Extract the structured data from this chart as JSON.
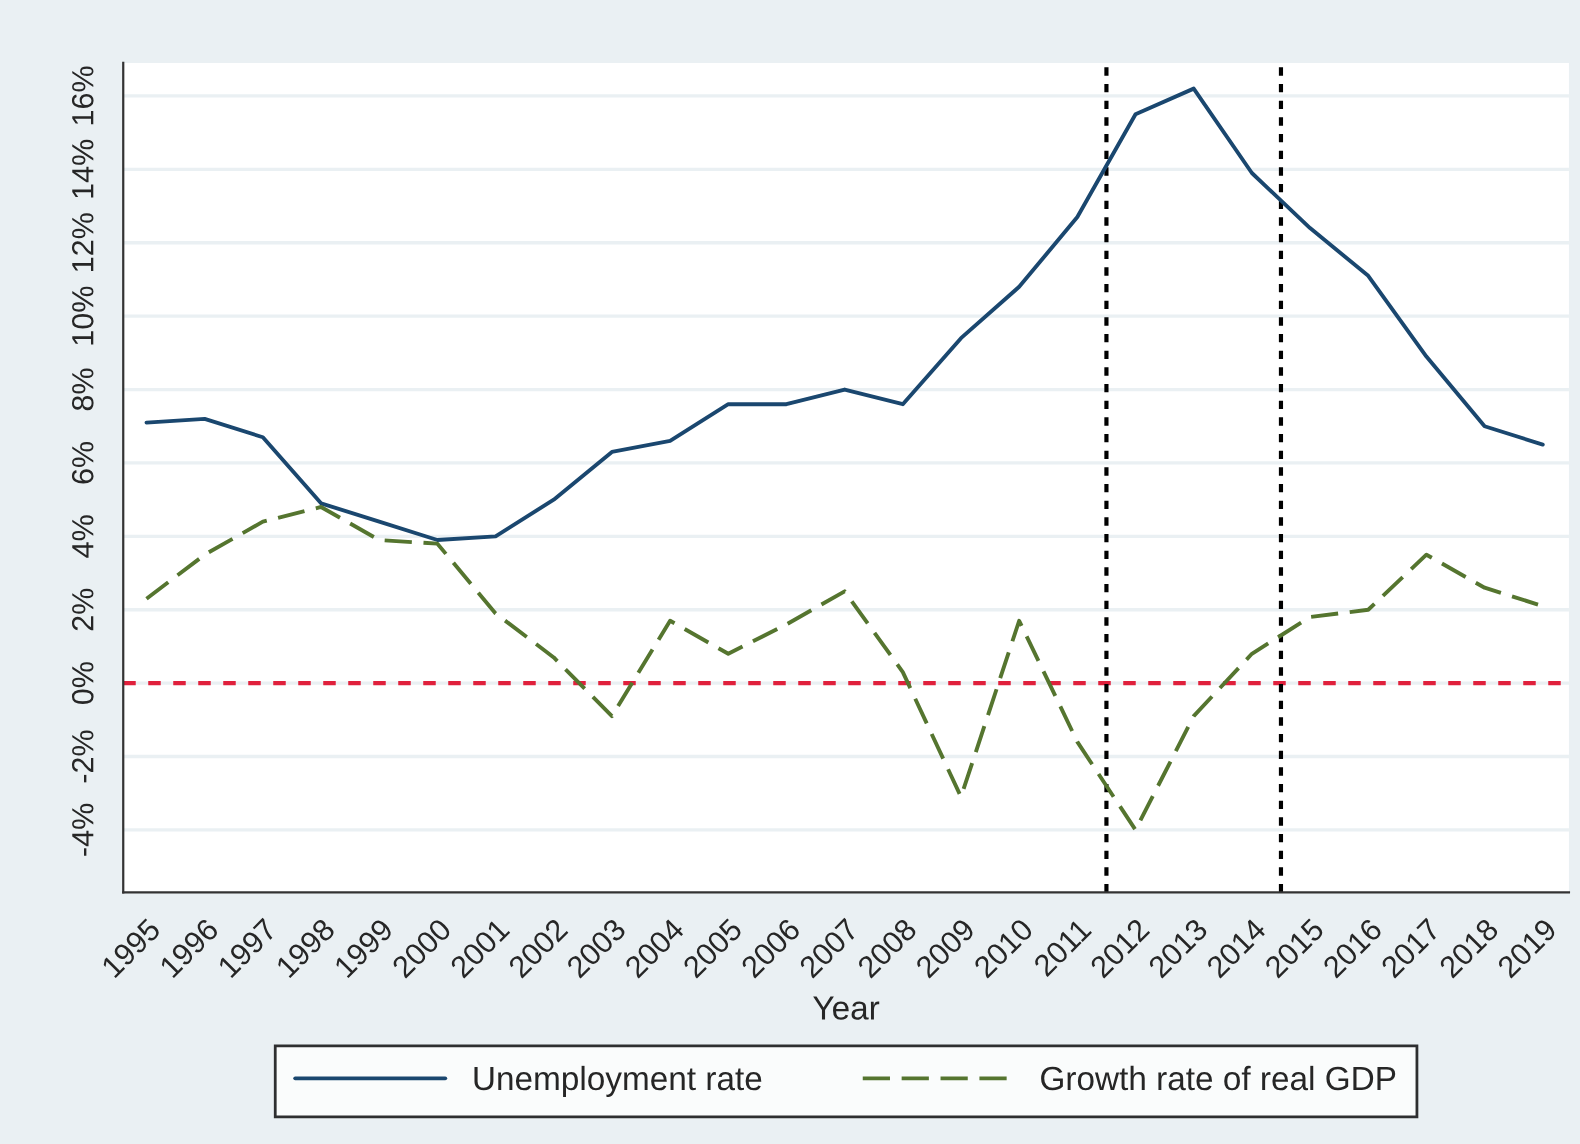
{
  "chart_data": {
    "type": "line",
    "xlabel": "Year",
    "x": [
      1995,
      1996,
      1997,
      1998,
      1999,
      2000,
      2001,
      2002,
      2003,
      2004,
      2005,
      2006,
      2007,
      2008,
      2009,
      2010,
      2011,
      2012,
      2013,
      2014,
      2015,
      2016,
      2017,
      2018,
      2019
    ],
    "series": [
      {
        "name": "Unemployment rate",
        "color": "#1a476f",
        "line_style": "solid",
        "values": [
          7.1,
          7.2,
          6.7,
          4.9,
          4.4,
          3.9,
          4.0,
          5.0,
          6.3,
          6.6,
          7.6,
          7.6,
          8.0,
          7.6,
          9.4,
          10.8,
          12.7,
          15.5,
          16.2,
          13.9,
          12.4,
          11.1,
          8.9,
          7.0,
          6.5
        ]
      },
      {
        "name": "Growth rate of real GDP",
        "color": "#55752f",
        "line_style": "dashed",
        "values": [
          2.3,
          3.5,
          4.4,
          4.8,
          3.9,
          3.8,
          1.9,
          0.7,
          -0.9,
          1.7,
          0.8,
          1.6,
          2.5,
          0.3,
          -3.1,
          1.7,
          -1.6,
          -4.0,
          -0.9,
          0.8,
          1.8,
          2.0,
          3.5,
          2.6,
          2.1
        ]
      }
    ],
    "xlim": [
      1994.6,
      2019.45
    ],
    "xticks": [
      1995,
      1996,
      1997,
      1998,
      1999,
      2000,
      2001,
      2002,
      2003,
      2004,
      2005,
      2006,
      2007,
      2008,
      2009,
      2010,
      2011,
      2012,
      2013,
      2014,
      2015,
      2016,
      2017,
      2018,
      2019
    ],
    "ylim": [
      -5.7,
      16.9
    ],
    "yticks": [
      {
        "value": -4,
        "label": "-4%"
      },
      {
        "value": -2,
        "label": "-2%"
      },
      {
        "value": 0,
        "label": "0%"
      },
      {
        "value": 2,
        "label": "2%"
      },
      {
        "value": 4,
        "label": "4%"
      },
      {
        "value": 6,
        "label": "6%"
      },
      {
        "value": 8,
        "label": "8%"
      },
      {
        "value": 10,
        "label": "10%"
      },
      {
        "value": 12,
        "label": "12%"
      },
      {
        "value": 14,
        "label": "14%"
      },
      {
        "value": 16,
        "label": "16%"
      }
    ],
    "ref_lines": [
      {
        "axis": "y",
        "value": 0,
        "color": "#e0203c",
        "line_style": "dashed"
      },
      {
        "axis": "x",
        "value": 2011.5,
        "color": "#000000",
        "line_style": "dotted"
      },
      {
        "axis": "x",
        "value": 2014.5,
        "color": "#000000",
        "line_style": "dotted"
      }
    ],
    "grid": "y",
    "legend": "bottom"
  }
}
